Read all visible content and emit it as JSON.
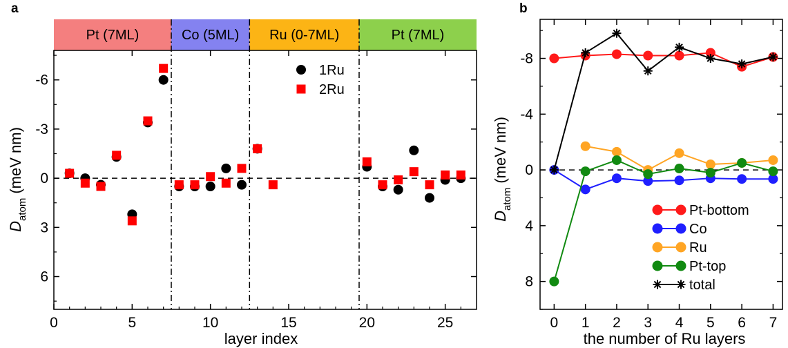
{
  "chart_data": [
    {
      "panel": "a",
      "type": "scatter",
      "xlabel": "layer index",
      "ylabel": "D",
      "ylabel_sub": "atom",
      "ylabel_unit": "(meV nm)",
      "xlim": [
        0,
        27
      ],
      "ylim": [
        8,
        -7.8
      ],
      "y_inverted": true,
      "xticks": [
        0,
        5,
        10,
        15,
        20,
        25
      ],
      "xtick_labels": [
        "0",
        "5",
        "10",
        "15",
        "20",
        "25"
      ],
      "yticks": [
        -6,
        -3,
        0,
        3,
        6
      ],
      "ytick_labels": [
        "-6",
        "-3",
        "0",
        "3",
        "6"
      ],
      "region_bands": [
        {
          "label": "Pt (7ML)",
          "x_from": 0,
          "x_to": 7.5,
          "color": "#f47f7f"
        },
        {
          "label": "Co (5ML)",
          "x_from": 7.5,
          "x_to": 12.5,
          "color": "#8482f0"
        },
        {
          "label": "Ru (0-7ML)",
          "x_from": 12.5,
          "x_to": 19.5,
          "color": "#fcb415"
        },
        {
          "label": "Pt (7ML)",
          "x_from": 19.5,
          "x_to": 27,
          "color": "#8dd04c"
        }
      ],
      "separators_x": [
        7.5,
        12.5,
        19.5
      ],
      "zero_line": 0,
      "legend_position": "top-center",
      "series": [
        {
          "name": "1Ru",
          "marker": "circle",
          "color": "#000000",
          "points": [
            [
              1,
              -0.3
            ],
            [
              2,
              0.0
            ],
            [
              3,
              0.4
            ],
            [
              4,
              -1.3
            ],
            [
              5,
              2.2
            ],
            [
              6,
              -3.4
            ],
            [
              7,
              -6.0
            ],
            [
              8,
              0.5
            ],
            [
              9,
              0.5
            ],
            [
              10,
              0.5
            ],
            [
              11,
              -0.6
            ],
            [
              12,
              0.4
            ],
            [
              13,
              -1.8
            ],
            [
              20,
              -0.7
            ],
            [
              21,
              0.5
            ],
            [
              22,
              0.7
            ],
            [
              23,
              -1.7
            ],
            [
              24,
              1.2
            ],
            [
              25,
              0.1
            ],
            [
              26,
              0.0
            ]
          ]
        },
        {
          "name": "2Ru",
          "marker": "square",
          "color": "#ff0000",
          "points": [
            [
              1,
              -0.3
            ],
            [
              2,
              0.3
            ],
            [
              3,
              0.5
            ],
            [
              4,
              -1.4
            ],
            [
              5,
              2.6
            ],
            [
              6,
              -3.5
            ],
            [
              7,
              -6.7
            ],
            [
              8,
              0.4
            ],
            [
              9,
              0.4
            ],
            [
              10,
              -0.1
            ],
            [
              11,
              0.3
            ],
            [
              12,
              -0.6
            ],
            [
              13,
              -1.8
            ],
            [
              14,
              0.4
            ],
            [
              20,
              -1.0
            ],
            [
              21,
              0.4
            ],
            [
              22,
              0.1
            ],
            [
              23,
              -0.4
            ],
            [
              24,
              0.4
            ],
            [
              25,
              -0.2
            ],
            [
              26,
              -0.2
            ]
          ]
        }
      ]
    },
    {
      "panel": "b",
      "type": "line",
      "xlabel": "the number of Ru layers",
      "ylabel": "D",
      "ylabel_sub": "atom",
      "ylabel_unit": "(meV nm)",
      "x": [
        0,
        1,
        2,
        3,
        4,
        5,
        6,
        7
      ],
      "xlim": [
        -0.45,
        7.3
      ],
      "ylim": [
        10,
        -10.8
      ],
      "y_inverted": true,
      "yticks": [
        -8,
        -4,
        0,
        4,
        8
      ],
      "ytick_labels": [
        "-8",
        "-4",
        "0",
        "4",
        "8"
      ],
      "zero_line": 0,
      "legend_position": "bottom-right",
      "series": [
        {
          "name": "Pt-bottom",
          "marker": "circle",
          "color": "#ff1a1a",
          "values": [
            -8.0,
            -8.2,
            -8.3,
            -8.2,
            -8.2,
            -8.4,
            -7.4,
            -8.1
          ]
        },
        {
          "name": "Co",
          "marker": "circle",
          "color": "#1f1fff",
          "values": [
            0.0,
            1.4,
            0.6,
            0.8,
            0.75,
            0.6,
            0.65,
            0.65
          ]
        },
        {
          "name": "Ru",
          "marker": "circle",
          "color": "#ffa524",
          "values": [
            null,
            -1.7,
            -1.3,
            0.0,
            -1.2,
            -0.4,
            -0.5,
            -0.7
          ]
        },
        {
          "name": "Pt-top",
          "marker": "circle",
          "color": "#118a11",
          "values": [
            8.0,
            0.1,
            -0.7,
            0.3,
            -0.1,
            0.2,
            -0.5,
            0.1
          ]
        },
        {
          "name": "total",
          "marker": "asterisk",
          "color": "#000000",
          "values": [
            0.0,
            -8.4,
            -9.8,
            -7.1,
            -8.8,
            -8.0,
            -7.6,
            -8.1
          ]
        }
      ]
    }
  ]
}
